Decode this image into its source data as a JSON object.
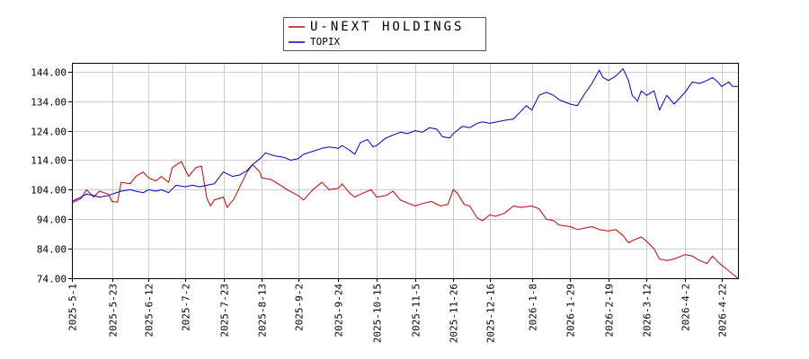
{
  "chart_data": {
    "type": "line",
    "title": "",
    "xlabel": "",
    "ylabel": "",
    "ylim": [
      74.0,
      147.0
    ],
    "yticks": [
      "74.00",
      "84.00",
      "94.00",
      "104.00",
      "114.00",
      "124.00",
      "134.00",
      "144.00"
    ],
    "xlim": [
      "2025-05-01",
      "2026-05-01"
    ],
    "xticks": [
      "2025-5-1",
      "2025-5-23",
      "2025-6-12",
      "2025-7-2",
      "2025-7-23",
      "2025-8-13",
      "2025-9-2",
      "2025-9-24",
      "2025-10-15",
      "2025-11-5",
      "2025-11-26",
      "2025-12-16",
      "2026-1-8",
      "2026-1-29",
      "2026-2-19",
      "2026-3-12",
      "2026-4-2",
      "2026-4-22"
    ],
    "grid": true,
    "legend_position": "top-center",
    "series": [
      {
        "name": "U-NEXT HOLDINGS",
        "color": "#cc0000",
        "points": [
          [
            "2025-05-01",
            99.5
          ],
          [
            "2025-05-06",
            101.0
          ],
          [
            "2025-05-09",
            104.0
          ],
          [
            "2025-05-13",
            101.5
          ],
          [
            "2025-05-16",
            103.5
          ],
          [
            "2025-05-21",
            102.5
          ],
          [
            "2025-05-23",
            100.0
          ],
          [
            "2025-05-26",
            99.8
          ],
          [
            "2025-05-28",
            106.5
          ],
          [
            "2025-06-02",
            106.0
          ],
          [
            "2025-06-05",
            108.5
          ],
          [
            "2025-06-09",
            110.0
          ],
          [
            "2025-06-12",
            108.0
          ],
          [
            "2025-06-16",
            107.0
          ],
          [
            "2025-06-19",
            108.5
          ],
          [
            "2025-06-23",
            106.5
          ],
          [
            "2025-06-25",
            111.5
          ],
          [
            "2025-06-30",
            113.5
          ],
          [
            "2025-07-02",
            111.0
          ],
          [
            "2025-07-04",
            108.5
          ],
          [
            "2025-07-08",
            111.5
          ],
          [
            "2025-07-11",
            112.0
          ],
          [
            "2025-07-14",
            101.0
          ],
          [
            "2025-07-16",
            98.5
          ],
          [
            "2025-07-18",
            100.5
          ],
          [
            "2025-07-23",
            101.5
          ],
          [
            "2025-07-25",
            98.0
          ],
          [
            "2025-07-29",
            101.0
          ],
          [
            "2025-08-01",
            105.0
          ],
          [
            "2025-08-05",
            110.0
          ],
          [
            "2025-08-08",
            112.5
          ],
          [
            "2025-08-12",
            110.0
          ],
          [
            "2025-08-13",
            108.0
          ],
          [
            "2025-08-18",
            107.5
          ],
          [
            "2025-08-22",
            106.0
          ],
          [
            "2025-08-27",
            104.0
          ],
          [
            "2025-09-02",
            102.0
          ],
          [
            "2025-09-05",
            100.5
          ],
          [
            "2025-09-10",
            104.0
          ],
          [
            "2025-09-15",
            106.5
          ],
          [
            "2025-09-19",
            104.0
          ],
          [
            "2025-09-24",
            104.5
          ],
          [
            "2025-09-26",
            106.0
          ],
          [
            "2025-09-30",
            103.0
          ],
          [
            "2025-10-03",
            101.5
          ],
          [
            "2025-10-08",
            103.0
          ],
          [
            "2025-10-12",
            104.0
          ],
          [
            "2025-10-15",
            101.5
          ],
          [
            "2025-10-20",
            102.0
          ],
          [
            "2025-10-24",
            103.5
          ],
          [
            "2025-10-28",
            100.5
          ],
          [
            "2025-11-01",
            99.5
          ],
          [
            "2025-11-05",
            98.5
          ],
          [
            "2025-11-10",
            99.5
          ],
          [
            "2025-11-14",
            100.0
          ],
          [
            "2025-11-19",
            98.5
          ],
          [
            "2025-11-23",
            99.0
          ],
          [
            "2025-11-26",
            104.0
          ],
          [
            "2025-11-28",
            103.0
          ],
          [
            "2025-12-02",
            99.0
          ],
          [
            "2025-12-05",
            98.5
          ],
          [
            "2025-12-09",
            94.5
          ],
          [
            "2025-12-12",
            93.5
          ],
          [
            "2025-12-16",
            95.5
          ],
          [
            "2025-12-19",
            95.0
          ],
          [
            "2025-12-24",
            96.0
          ],
          [
            "2025-12-29",
            98.5
          ],
          [
            "2026-01-02",
            98.0
          ],
          [
            "2026-01-08",
            98.5
          ],
          [
            "2026-01-12",
            97.5
          ],
          [
            "2026-01-16",
            94.0
          ],
          [
            "2026-01-20",
            93.5
          ],
          [
            "2026-01-23",
            92.0
          ],
          [
            "2026-01-29",
            91.5
          ],
          [
            "2026-02-02",
            90.5
          ],
          [
            "2026-02-06",
            91.0
          ],
          [
            "2026-02-10",
            91.5
          ],
          [
            "2026-02-14",
            90.5
          ],
          [
            "2026-02-19",
            90.0
          ],
          [
            "2026-02-23",
            90.5
          ],
          [
            "2026-02-27",
            88.5
          ],
          [
            "2026-03-02",
            86.0
          ],
          [
            "2026-03-05",
            87.0
          ],
          [
            "2026-03-09",
            88.0
          ],
          [
            "2026-03-12",
            86.5
          ],
          [
            "2026-03-16",
            84.0
          ],
          [
            "2026-03-19",
            80.5
          ],
          [
            "2026-03-23",
            80.0
          ],
          [
            "2026-03-27",
            80.5
          ],
          [
            "2026-04-02",
            82.0
          ],
          [
            "2026-04-06",
            81.5
          ],
          [
            "2026-04-10",
            80.0
          ],
          [
            "2026-04-14",
            79.0
          ],
          [
            "2026-04-17",
            81.5
          ],
          [
            "2026-04-20",
            79.5
          ],
          [
            "2026-04-22",
            78.5
          ],
          [
            "2026-04-25",
            77.0
          ],
          [
            "2026-04-28",
            75.5
          ],
          [
            "2026-05-01",
            74.0
          ]
        ]
      },
      {
        "name": "TOPIX",
        "color": "#0000cc",
        "points": [
          [
            "2025-05-01",
            100.0
          ],
          [
            "2025-05-06",
            101.5
          ],
          [
            "2025-05-09",
            102.5
          ],
          [
            "2025-05-13",
            102.0
          ],
          [
            "2025-05-16",
            101.5
          ],
          [
            "2025-05-21",
            102.0
          ],
          [
            "2025-05-23",
            102.5
          ],
          [
            "2025-05-28",
            103.5
          ],
          [
            "2025-06-02",
            104.0
          ],
          [
            "2025-06-05",
            103.5
          ],
          [
            "2025-06-09",
            103.0
          ],
          [
            "2025-06-12",
            104.0
          ],
          [
            "2025-06-16",
            103.5
          ],
          [
            "2025-06-19",
            104.0
          ],
          [
            "2025-06-23",
            103.0
          ],
          [
            "2025-06-27",
            105.5
          ],
          [
            "2025-07-02",
            105.0
          ],
          [
            "2025-07-06",
            105.5
          ],
          [
            "2025-07-10",
            105.0
          ],
          [
            "2025-07-14",
            105.5
          ],
          [
            "2025-07-18",
            106.0
          ],
          [
            "2025-07-23",
            110.0
          ],
          [
            "2025-07-28",
            108.5
          ],
          [
            "2025-08-01",
            109.0
          ],
          [
            "2025-08-05",
            110.5
          ],
          [
            "2025-08-08",
            112.5
          ],
          [
            "2025-08-13",
            115.0
          ],
          [
            "2025-08-15",
            116.5
          ],
          [
            "2025-08-20",
            115.5
          ],
          [
            "2025-08-25",
            115.0
          ],
          [
            "2025-08-29",
            114.0
          ],
          [
            "2025-09-02",
            114.5
          ],
          [
            "2025-09-05",
            116.0
          ],
          [
            "2025-09-10",
            117.0
          ],
          [
            "2025-09-15",
            118.0
          ],
          [
            "2025-09-19",
            118.5
          ],
          [
            "2025-09-24",
            118.0
          ],
          [
            "2025-09-26",
            119.0
          ],
          [
            "2025-09-30",
            117.5
          ],
          [
            "2025-10-03",
            116.0
          ],
          [
            "2025-10-06",
            120.0
          ],
          [
            "2025-10-10",
            121.0
          ],
          [
            "2025-10-13",
            118.5
          ],
          [
            "2025-10-15",
            119.0
          ],
          [
            "2025-10-20",
            121.5
          ],
          [
            "2025-10-24",
            122.5
          ],
          [
            "2025-10-28",
            123.5
          ],
          [
            "2025-11-01",
            123.0
          ],
          [
            "2025-11-05",
            124.0
          ],
          [
            "2025-11-09",
            123.5
          ],
          [
            "2025-11-13",
            125.0
          ],
          [
            "2025-11-17",
            124.5
          ],
          [
            "2025-11-20",
            122.0
          ],
          [
            "2025-11-24",
            121.5
          ],
          [
            "2025-11-26",
            123.0
          ],
          [
            "2025-12-01",
            125.5
          ],
          [
            "2025-12-05",
            125.0
          ],
          [
            "2025-12-09",
            126.5
          ],
          [
            "2025-12-12",
            127.0
          ],
          [
            "2025-12-16",
            126.5
          ],
          [
            "2025-12-20",
            127.0
          ],
          [
            "2025-12-24",
            127.5
          ],
          [
            "2025-12-29",
            128.0
          ],
          [
            "2026-01-02",
            130.5
          ],
          [
            "2026-01-05",
            132.5
          ],
          [
            "2026-01-08",
            131.0
          ],
          [
            "2026-01-12",
            136.0
          ],
          [
            "2026-01-16",
            137.0
          ],
          [
            "2026-01-20",
            136.0
          ],
          [
            "2026-01-23",
            134.5
          ],
          [
            "2026-01-29",
            133.0
          ],
          [
            "2026-02-02",
            132.5
          ],
          [
            "2026-02-06",
            136.5
          ],
          [
            "2026-02-10",
            140.0
          ],
          [
            "2026-02-14",
            144.5
          ],
          [
            "2026-02-16",
            142.0
          ],
          [
            "2026-02-19",
            141.0
          ],
          [
            "2026-02-23",
            142.5
          ],
          [
            "2026-02-27",
            145.0
          ],
          [
            "2026-03-02",
            141.0
          ],
          [
            "2026-03-04",
            136.0
          ],
          [
            "2026-03-07",
            134.0
          ],
          [
            "2026-03-09",
            137.5
          ],
          [
            "2026-03-12",
            136.0
          ],
          [
            "2026-03-16",
            137.5
          ],
          [
            "2026-03-19",
            131.0
          ],
          [
            "2026-03-23",
            136.0
          ],
          [
            "2026-03-27",
            133.0
          ],
          [
            "2026-04-02",
            137.0
          ],
          [
            "2026-04-06",
            140.5
          ],
          [
            "2026-04-10",
            140.0
          ],
          [
            "2026-04-14",
            141.0
          ],
          [
            "2026-04-17",
            142.0
          ],
          [
            "2026-04-20",
            140.5
          ],
          [
            "2026-04-22",
            139.0
          ],
          [
            "2026-04-26",
            140.5
          ],
          [
            "2026-04-28",
            139.0
          ],
          [
            "2026-05-01",
            139.0
          ]
        ]
      }
    ]
  }
}
